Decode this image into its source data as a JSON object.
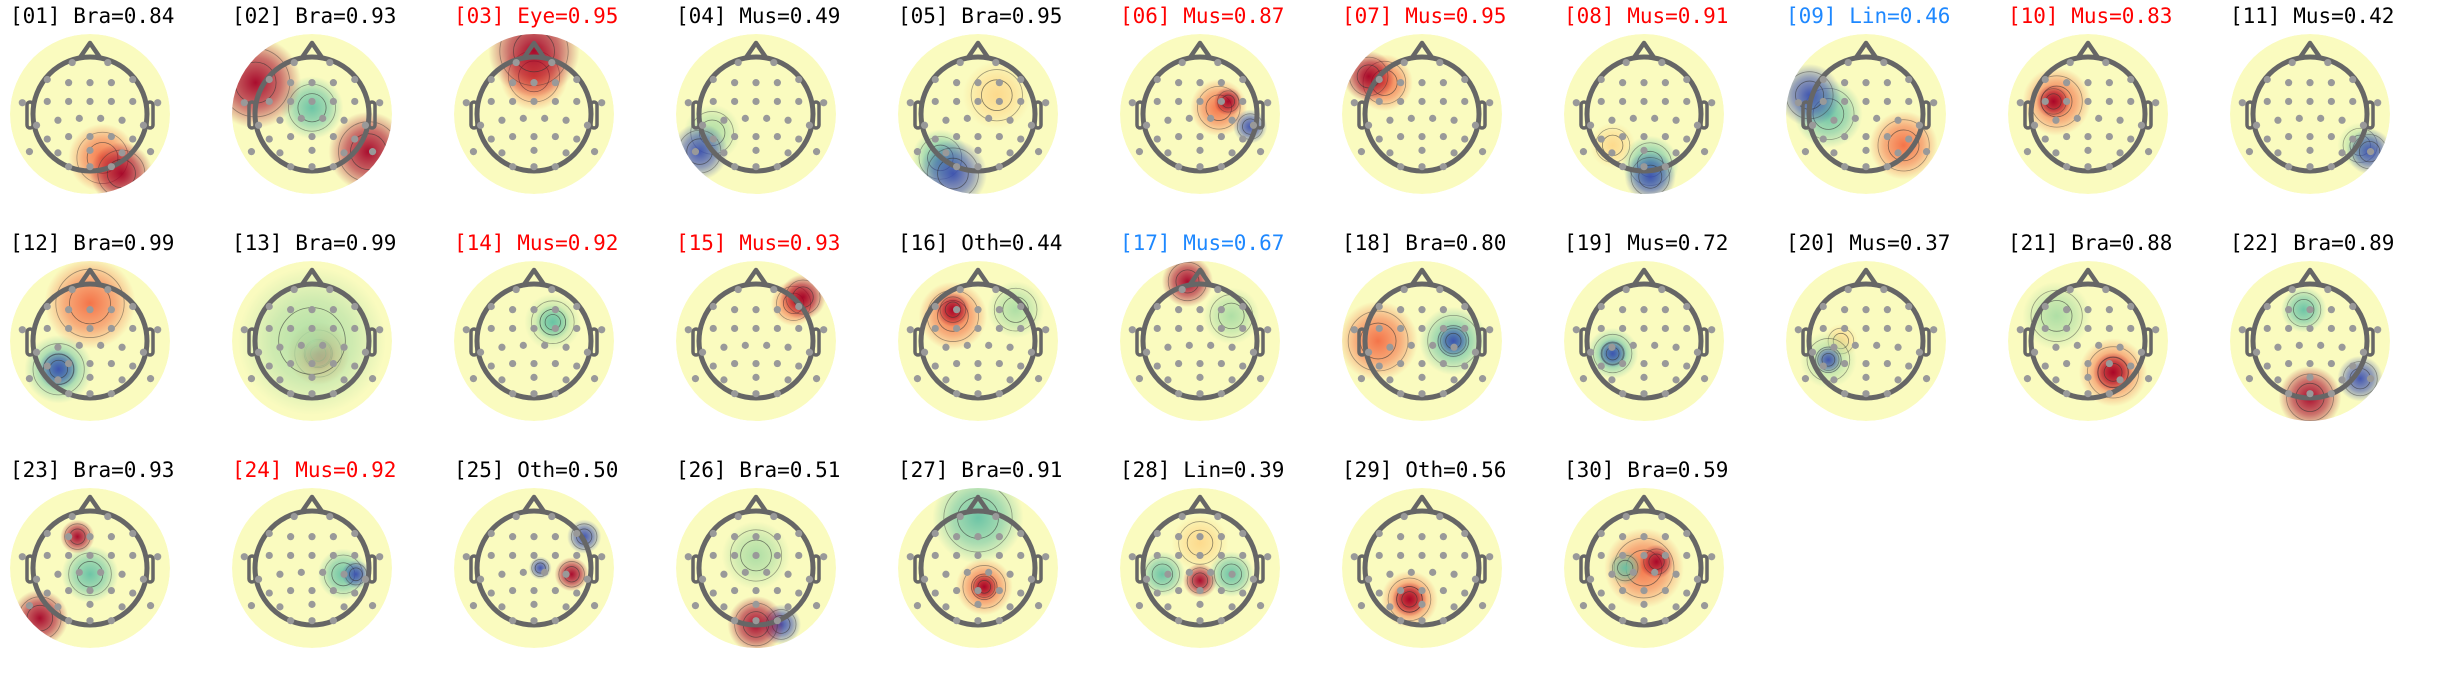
{
  "chart_data": {
    "type": "heatmap",
    "colormap": "Spectral",
    "label_colors": {
      "default": "#000000",
      "flagged": "#ff0000",
      "uncertain": "#1e88ff"
    },
    "components": [
      {
        "label": "[01] Bra=0.84",
        "status": "default"
      },
      {
        "label": "[02] Bra=0.93",
        "status": "default"
      },
      {
        "label": "[03] Eye=0.95",
        "status": "flagged"
      },
      {
        "label": "[04] Mus=0.49",
        "status": "default"
      },
      {
        "label": "[05] Bra=0.95",
        "status": "default"
      },
      {
        "label": "[06] Mus=0.87",
        "status": "flagged"
      },
      {
        "label": "[07] Mus=0.95",
        "status": "flagged"
      },
      {
        "label": "[08] Mus=0.91",
        "status": "flagged"
      },
      {
        "label": "[09] Lin=0.46",
        "status": "uncertain"
      },
      {
        "label": "[10] Mus=0.83",
        "status": "flagged"
      },
      {
        "label": "[11] Mus=0.42",
        "status": "default"
      },
      {
        "label": "[12] Bra=0.99",
        "status": "default"
      },
      {
        "label": "[13] Bra=0.99",
        "status": "default"
      },
      {
        "label": "[14] Mus=0.92",
        "status": "flagged"
      },
      {
        "label": "[15] Mus=0.93",
        "status": "flagged"
      },
      {
        "label": "[16] Oth=0.44",
        "status": "default"
      },
      {
        "label": "[17] Mus=0.67",
        "status": "uncertain"
      },
      {
        "label": "[18] Bra=0.80",
        "status": "default"
      },
      {
        "label": "[19] Mus=0.72",
        "status": "default"
      },
      {
        "label": "[20] Mus=0.37",
        "status": "default"
      },
      {
        "label": "[21] Bra=0.88",
        "status": "default"
      },
      {
        "label": "[22] Bra=0.89",
        "status": "default"
      },
      {
        "label": "[23] Bra=0.93",
        "status": "default"
      },
      {
        "label": "[24] Mus=0.92",
        "status": "flagged"
      },
      {
        "label": "[25] Oth=0.50",
        "status": "default"
      },
      {
        "label": "[26] Bra=0.51",
        "status": "default"
      },
      {
        "label": "[27] Bra=0.91",
        "status": "default"
      },
      {
        "label": "[28] Lin=0.39",
        "status": "default"
      },
      {
        "label": "[29] Oth=0.56",
        "status": "default"
      },
      {
        "label": "[30] Bra=0.59",
        "status": "default"
      }
    ]
  }
}
